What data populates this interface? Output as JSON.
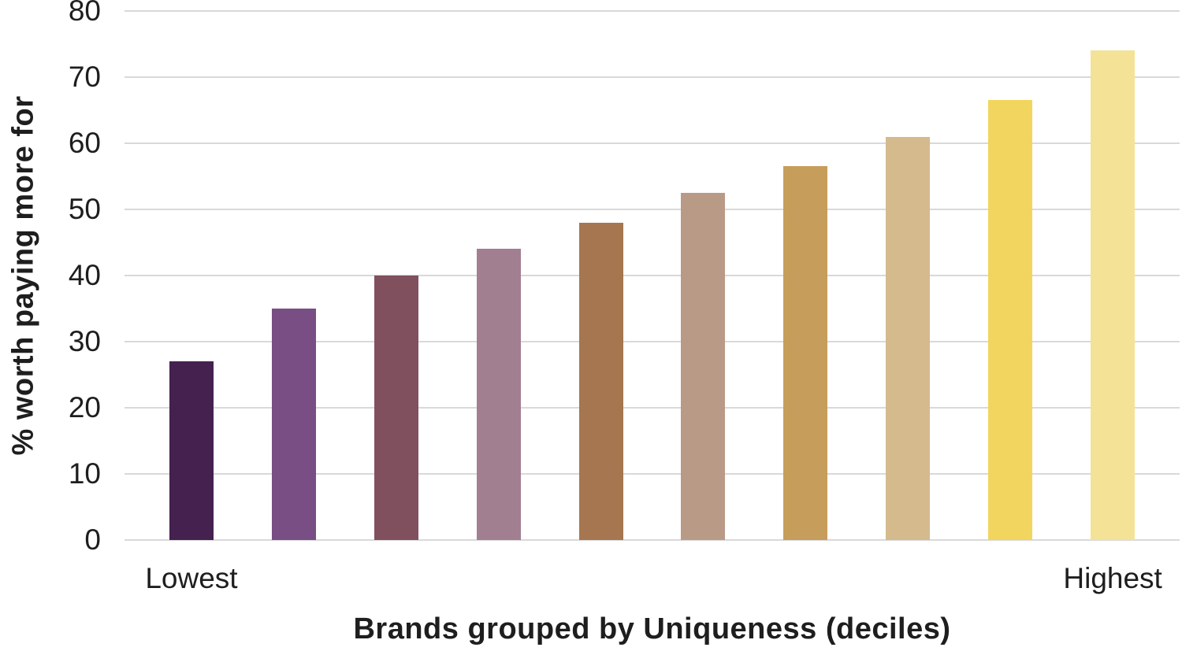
{
  "chart_data": {
    "type": "bar",
    "title": "",
    "ylabel": "% worth paying more for",
    "xlabel": "Brands grouped by Uniqueness (deciles)",
    "categories": [
      "Lowest",
      "",
      "",
      "",
      "",
      "",
      "",
      "",
      "",
      "Highest"
    ],
    "values": [
      27,
      35,
      40,
      44,
      48,
      52.5,
      56.5,
      61,
      66.5,
      74
    ],
    "bar_colors": [
      "#45214F",
      "#784E84",
      "#81505F",
      "#A27E91",
      "#A5764F",
      "#B99A86",
      "#C79D5B",
      "#D4BA8D",
      "#F2D55E",
      "#F4E296"
    ],
    "ylim": [
      0,
      80
    ],
    "yticks": [
      0,
      10,
      20,
      30,
      40,
      50,
      60,
      70,
      80
    ],
    "grid": "horizontal",
    "legend": "none",
    "colors": {
      "gridline": "#D9D9D9",
      "text": "#1E1E1E",
      "background": "#FFFFFF"
    }
  }
}
